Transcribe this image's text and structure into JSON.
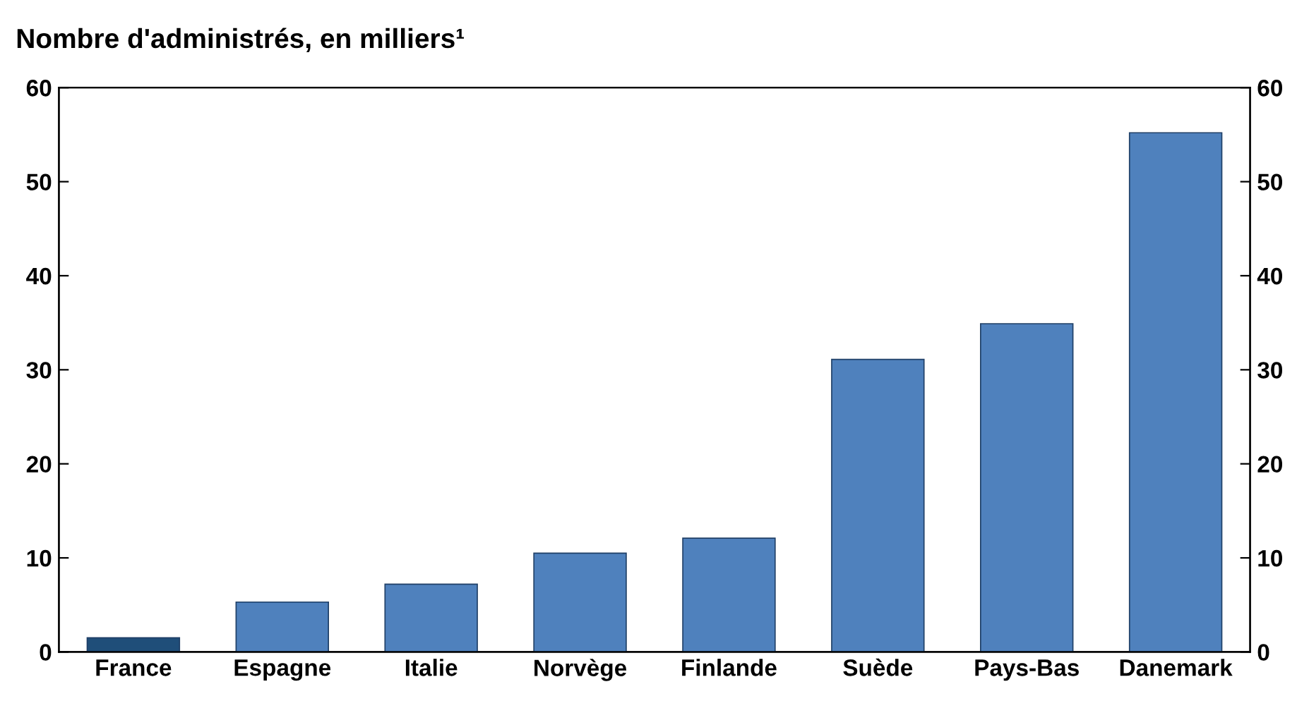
{
  "chart_data": {
    "type": "bar",
    "title": "Nombre d'administrés, en milliers¹",
    "categories": [
      "France",
      "Espagne",
      "Italie",
      "Norvège",
      "Finlande",
      "Suède",
      "Pays-Bas",
      "Danemark"
    ],
    "values": [
      1.5,
      5.3,
      7.2,
      10.5,
      12.1,
      31.1,
      34.9,
      55.2
    ],
    "colors": [
      "#1f4e79",
      "#4f81bd",
      "#4f81bd",
      "#4f81bd",
      "#4f81bd",
      "#4f81bd",
      "#4f81bd",
      "#4f81bd"
    ],
    "ylim": [
      0,
      60
    ],
    "yticks": [
      0,
      10,
      20,
      30,
      40,
      50,
      60
    ],
    "y2lim": [
      0,
      60
    ],
    "y2ticks": [
      0,
      10,
      20,
      30,
      40,
      50,
      60
    ],
    "grid": false,
    "legend": false
  }
}
